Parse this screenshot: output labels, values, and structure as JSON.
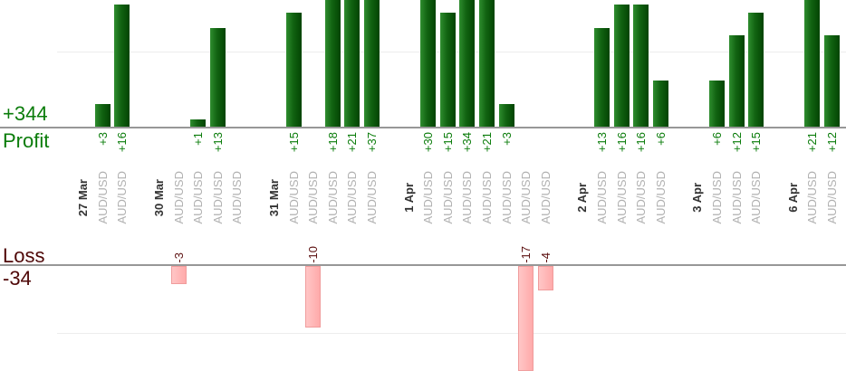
{
  "chart_data": {
    "type": "bar",
    "title": "",
    "instrument": "AUD/USD",
    "profit_section": {
      "total": "+344",
      "label": "Profit"
    },
    "loss_section": {
      "label": "Loss",
      "total": "-34"
    },
    "groups": [
      {
        "date": "27 Mar",
        "values": [
          3,
          16
        ]
      },
      {
        "date": "30 Mar",
        "values": [
          -3,
          1,
          13,
          0
        ]
      },
      {
        "date": "31 Mar",
        "values": [
          15,
          -10,
          18,
          21,
          37
        ]
      },
      {
        "date": "1 Apr",
        "values": [
          30,
          15,
          34,
          21,
          3,
          -17,
          -4
        ]
      },
      {
        "date": "2 Apr",
        "values": [
          13,
          16,
          16,
          6
        ]
      },
      {
        "date": "3 Apr",
        "values": [
          6,
          12,
          15
        ]
      },
      {
        "date": "6 Apr",
        "values": [
          21,
          12
        ]
      }
    ],
    "axis": {
      "profit_gridline_value": 10,
      "loss_gridline_value": -10
    },
    "colors": {
      "profit_text": "#0a7c0a",
      "loss_text": "#4f0808",
      "loss_value_text": "#5c1010",
      "profit_bar_left": "#2f8d2f",
      "profit_bar_right": "#034403",
      "loss_bar_fill": "#ffb3b3",
      "loss_bar_border": "#f09c9c",
      "date_text": "#333333",
      "instrument_text": "#b1b1b1",
      "axis_line": "#979797",
      "gridline": "#ededed"
    }
  }
}
